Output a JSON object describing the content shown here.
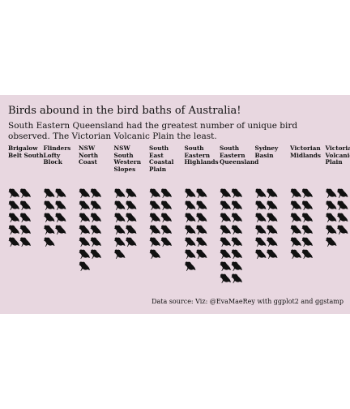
{
  "chart_data": {
    "type": "pictogram",
    "title": "Birds abound in the bird baths of Australia!",
    "subtitle": "South Eastern Queensland had the greatest number of unique bird observed. The Victorian Volcanic Plain the least.",
    "caption": "Data source:  Viz: @EvaMaeRey with ggplot2 and ggstamp",
    "categories": [
      "Brigalow\nBelt South",
      "Flinders\nLofty\nBlock",
      "NSW North\nCoast",
      "NSW South\nWestern\nSlopes",
      "South East\nCoastal\nPlain",
      "South\nEastern\nHighlands",
      "South\nEastern\nQueensland",
      "Sydney\nBasin",
      "Victorian\nMidlands",
      "Victorian\nVolcanic\nPlain"
    ],
    "values": [
      10,
      9,
      13,
      11,
      11,
      13,
      16,
      12,
      12,
      9
    ],
    "icon": "bird-icon",
    "icons_per_row": 2,
    "colors": {
      "background": "#e8d7e0",
      "icon": "#111111"
    }
  }
}
